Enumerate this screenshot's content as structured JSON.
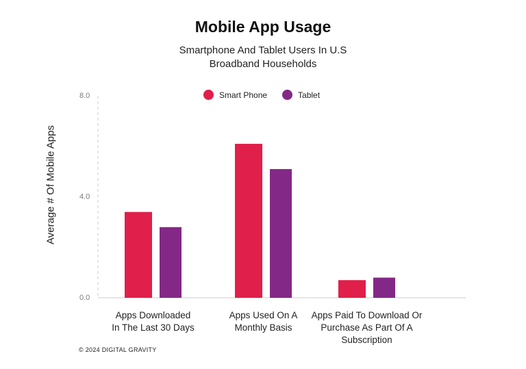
{
  "chart_data": {
    "type": "bar",
    "title": "Mobile App Usage",
    "subtitle": [
      "Smartphone And Tablet Users In U.S",
      "Broadband Households"
    ],
    "xlabel": "",
    "ylabel": "Average # Of Mobile Apps",
    "ylim": [
      0,
      8
    ],
    "yticks": [
      "0.0",
      "4.0",
      "8.0"
    ],
    "grid": false,
    "legend_placement": "top-center",
    "categories": [
      [
        "Apps Downloaded",
        "In The Last 30 Days"
      ],
      [
        "Apps Used On A",
        "Monthly Basis"
      ],
      [
        "Apps Paid To Download Or",
        "Purchase As Part Of A",
        "Subscription"
      ]
    ],
    "series": [
      {
        "name": "Smart Phone",
        "color": "#E01F4A",
        "values": [
          3.4,
          6.1,
          0.7
        ]
      },
      {
        "name": "Tablet",
        "color": "#842887",
        "values": [
          2.8,
          5.1,
          0.8
        ]
      }
    ]
  },
  "footer": "© 2024 DIGITAL GRAVITY"
}
